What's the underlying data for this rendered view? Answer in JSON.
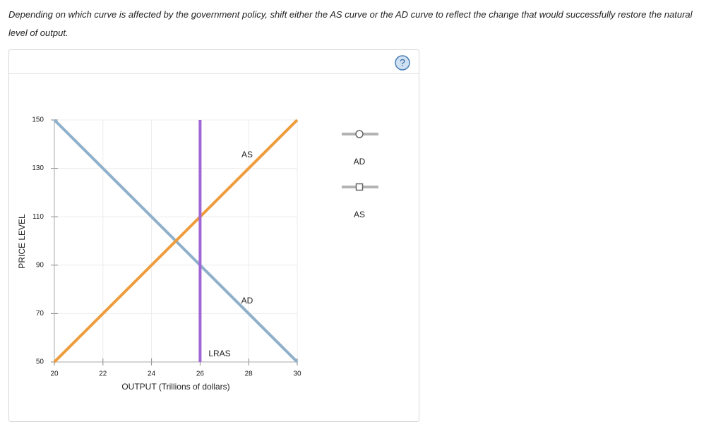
{
  "instructions": "Depending on which curve is affected by the government policy, shift either the AS curve or the AD curve to reflect the change that would successfully restore the natural level of output.",
  "help_icon": "?",
  "chart_data": {
    "type": "line",
    "x_label": "OUTPUT (Trillions of dollars)",
    "y_label": "PRICE LEVEL",
    "xlim": [
      20,
      30
    ],
    "xticks": [
      20,
      22,
      24,
      26,
      28,
      30
    ],
    "ylim": [
      50,
      150
    ],
    "yticks": [
      50,
      70,
      90,
      110,
      130,
      150
    ],
    "grid": true,
    "series": [
      {
        "name": "AD",
        "color": "#8fb0cb",
        "x": [
          20,
          30
        ],
        "values": [
          150,
          50
        ]
      },
      {
        "name": "AS",
        "color": "#ee9c3c",
        "x": [
          20,
          30
        ],
        "values": [
          50,
          150
        ]
      },
      {
        "name": "LRAS",
        "color": "#a067d4",
        "x": [
          26,
          26
        ],
        "values": [
          50,
          150
        ]
      }
    ]
  }
}
